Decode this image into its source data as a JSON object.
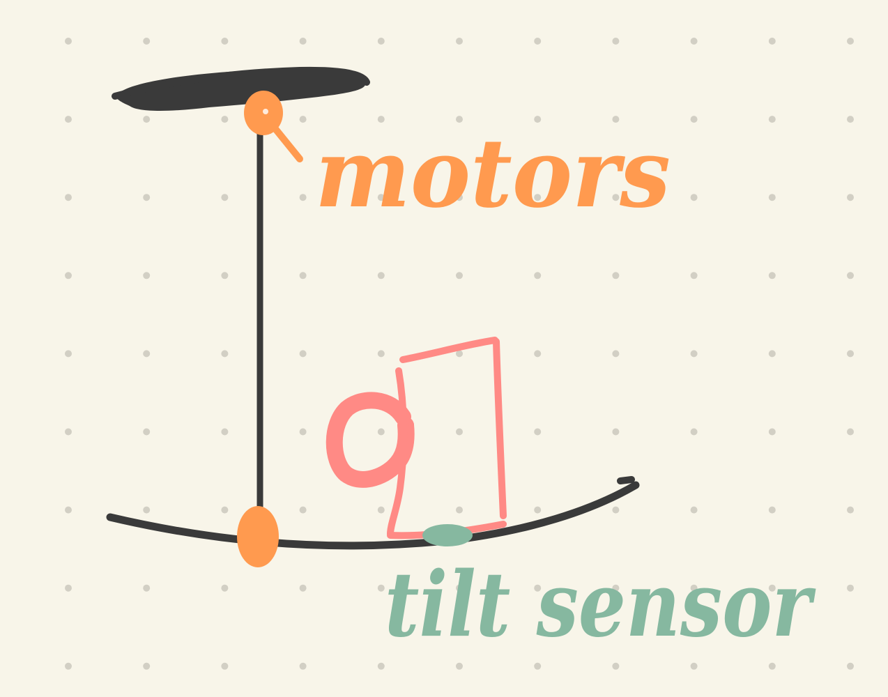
{
  "labels": {
    "motors": "motors",
    "tilt_sensor": "tilt sensor"
  },
  "colors": {
    "background": "#f8f5e9",
    "grid_dot": "#d2cfc4",
    "structure": "#3a3a3a",
    "motor": "#ff9a4f",
    "hand": "#ff8a85",
    "sensor": "#86b8a0"
  }
}
